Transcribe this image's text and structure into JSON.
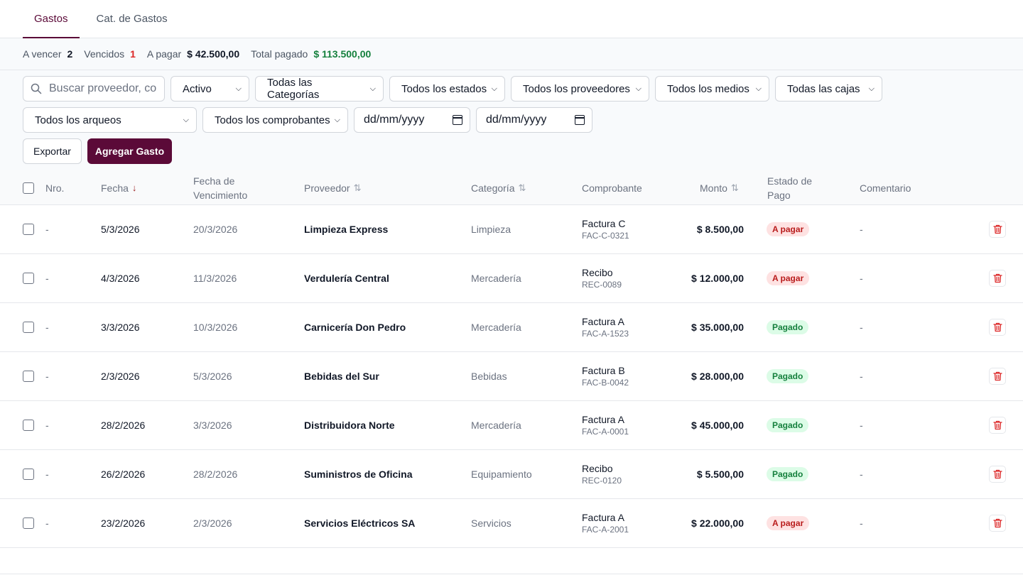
{
  "tabs": [
    {
      "label": "Gastos",
      "active": true
    },
    {
      "label": "Cat. de Gastos",
      "active": false
    }
  ],
  "summary": {
    "a_vencer_label": "A vencer",
    "a_vencer_value": "2",
    "vencidos_label": "Vencidos",
    "vencidos_value": "1",
    "a_pagar_label": "A pagar",
    "a_pagar_value": "$ 42.500,00",
    "total_pagado_label": "Total pagado",
    "total_pagado_value": "$ 113.500,00"
  },
  "filters": {
    "search_placeholder": "Buscar proveedor, co",
    "status": "Activo",
    "categories": "Todas las Categorías",
    "states": "Todos los estados",
    "providers": "Todos los proveedores",
    "methods": "Todos los medios",
    "cashboxes": "Todas las cajas",
    "arqueos": "Todos los arqueos",
    "comprobantes": "Todos los comprobantes",
    "date_from": "dd/mm/yyyy",
    "date_to": "dd/mm/yyyy"
  },
  "actions": {
    "export": "Exportar",
    "add": "Agregar Gasto"
  },
  "columns": {
    "nro": "Nro.",
    "fecha": "Fecha",
    "vencimiento_1": "Fecha de",
    "vencimiento_2": "Vencimiento",
    "proveedor": "Proveedor",
    "categoria": "Categoría",
    "comprobante": "Comprobante",
    "monto": "Monto",
    "estado_1": "Estado de",
    "estado_2": "Pago",
    "comentario": "Comentario"
  },
  "rows": [
    {
      "nro": "-",
      "fecha": "5/3/2026",
      "vencimiento": "20/3/2026",
      "proveedor": "Limpieza Express",
      "categoria": "Limpieza",
      "comp_tipo": "Factura C",
      "comp_nro": "FAC-C-0321",
      "monto": "$ 8.500,00",
      "estado": "A pagar",
      "comentario": "-"
    },
    {
      "nro": "-",
      "fecha": "4/3/2026",
      "vencimiento": "11/3/2026",
      "proveedor": "Verdulería Central",
      "categoria": "Mercadería",
      "comp_tipo": "Recibo",
      "comp_nro": "REC-0089",
      "monto": "$ 12.000,00",
      "estado": "A pagar",
      "comentario": "-"
    },
    {
      "nro": "-",
      "fecha": "3/3/2026",
      "vencimiento": "10/3/2026",
      "proveedor": "Carnicería Don Pedro",
      "categoria": "Mercadería",
      "comp_tipo": "Factura A",
      "comp_nro": "FAC-A-1523",
      "monto": "$ 35.000,00",
      "estado": "Pagado",
      "comentario": "-"
    },
    {
      "nro": "-",
      "fecha": "2/3/2026",
      "vencimiento": "5/3/2026",
      "proveedor": "Bebidas del Sur",
      "categoria": "Bebidas",
      "comp_tipo": "Factura B",
      "comp_nro": "FAC-B-0042",
      "monto": "$ 28.000,00",
      "estado": "Pagado",
      "comentario": "-"
    },
    {
      "nro": "-",
      "fecha": "28/2/2026",
      "vencimiento": "3/3/2026",
      "proveedor": "Distribuidora Norte",
      "categoria": "Mercadería",
      "comp_tipo": "Factura A",
      "comp_nro": "FAC-A-0001",
      "monto": "$ 45.000,00",
      "estado": "Pagado",
      "comentario": "-"
    },
    {
      "nro": "-",
      "fecha": "26/2/2026",
      "vencimiento": "28/2/2026",
      "proveedor": "Suministros de Oficina",
      "categoria": "Equipamiento",
      "comp_tipo": "Recibo",
      "comp_nro": "REC-0120",
      "monto": "$ 5.500,00",
      "estado": "Pagado",
      "comentario": "-"
    },
    {
      "nro": "-",
      "fecha": "23/2/2026",
      "vencimiento": "2/3/2026",
      "proveedor": "Servicios Eléctricos SA",
      "categoria": "Servicios",
      "comp_tipo": "Factura A",
      "comp_nro": "FAC-A-2001",
      "monto": "$ 22.000,00",
      "estado": "A pagar",
      "comentario": "-"
    }
  ],
  "colors": {
    "brand": "#5b0a38",
    "danger": "#dc2626",
    "success": "#15803d"
  }
}
